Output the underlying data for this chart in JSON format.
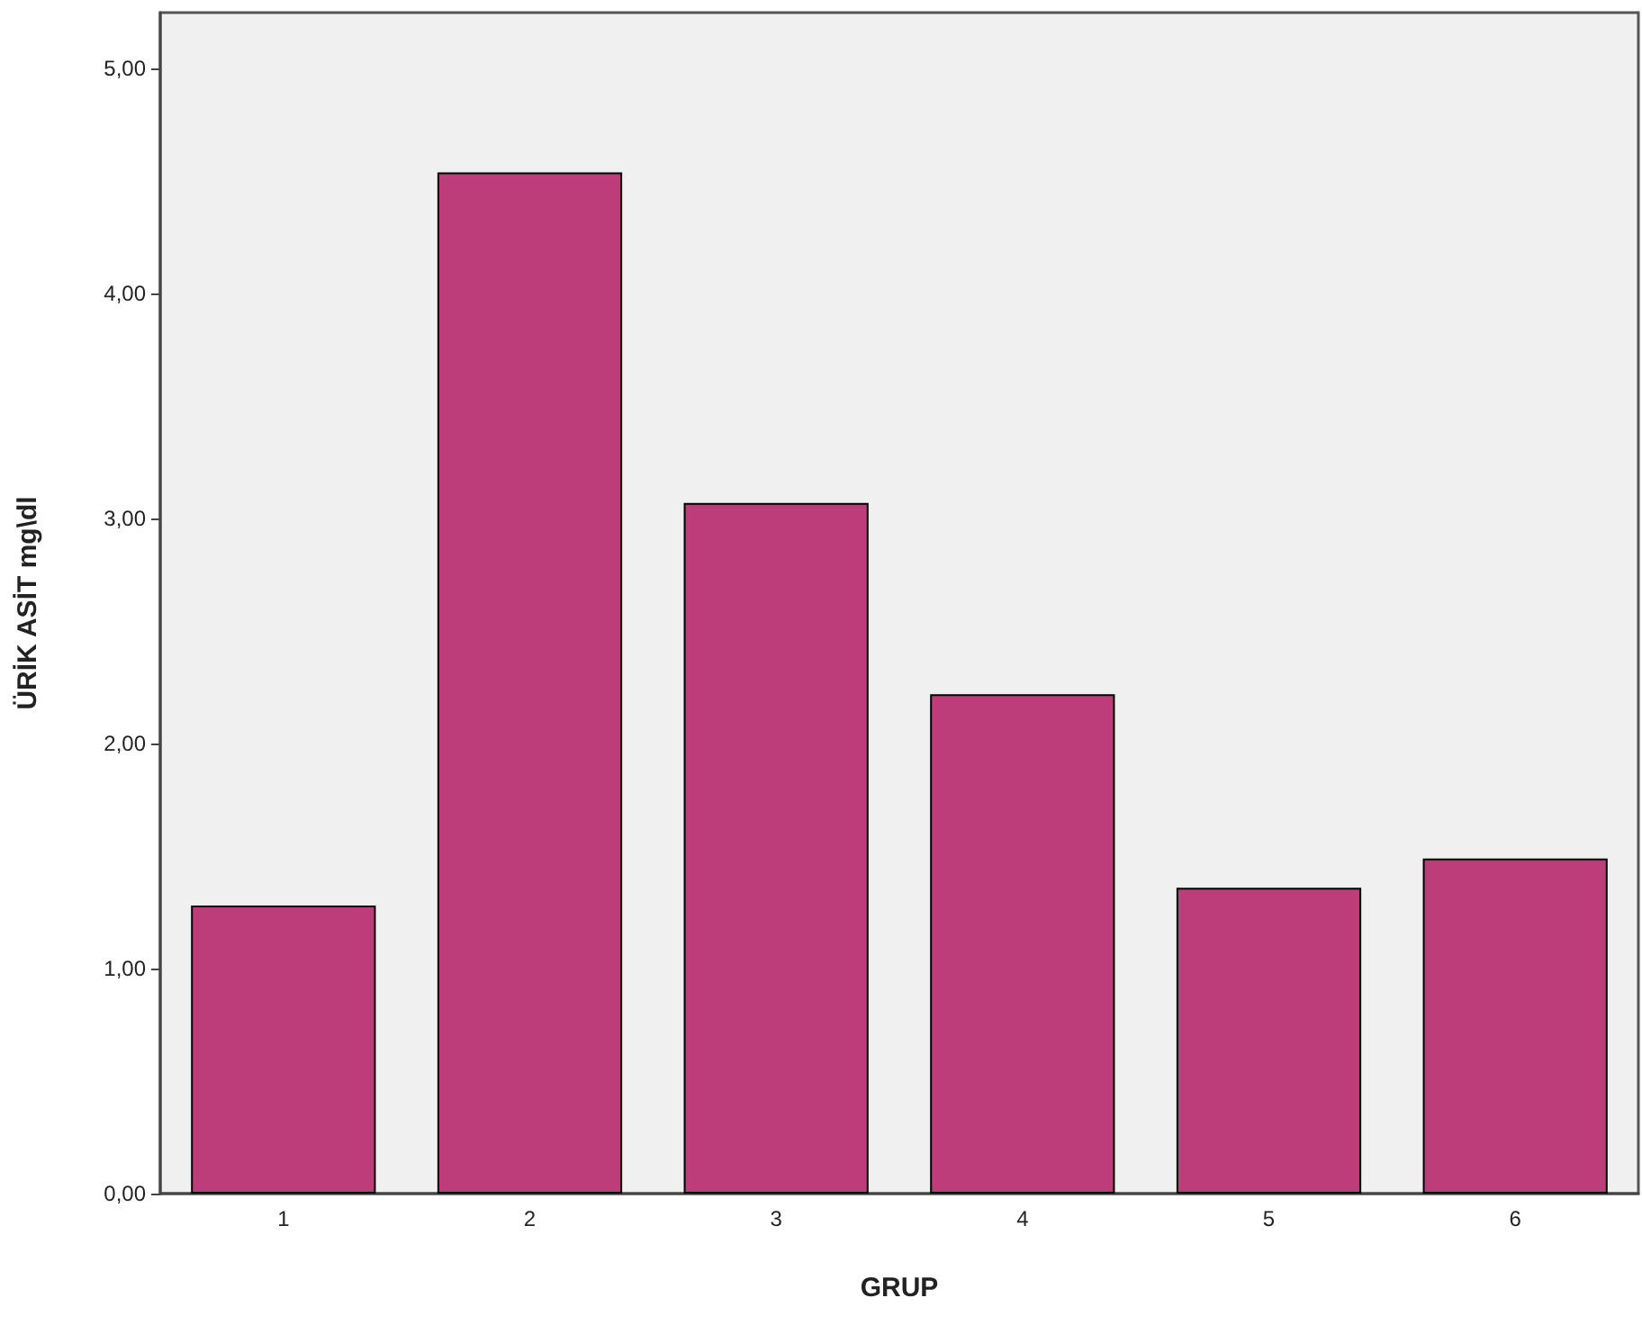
{
  "chart_data": {
    "type": "bar",
    "xlabel": "GRUP",
    "ylabel": "ÜRİK ASİT mg\\dl",
    "categories": [
      "1",
      "2",
      "3",
      "4",
      "5",
      "6"
    ],
    "values": [
      1.28,
      4.54,
      3.07,
      2.22,
      1.36,
      1.49
    ],
    "color": "#bb3e7b",
    "ylim": [
      0,
      5.25
    ],
    "yticks": [
      {
        "value": 0,
        "label": "0,00"
      },
      {
        "value": 1,
        "label": "1,00"
      },
      {
        "value": 2,
        "label": "2,00"
      },
      {
        "value": 3,
        "label": "3,00"
      },
      {
        "value": 4,
        "label": "4,00"
      },
      {
        "value": 5,
        "label": "5,00"
      }
    ],
    "grid": false
  }
}
